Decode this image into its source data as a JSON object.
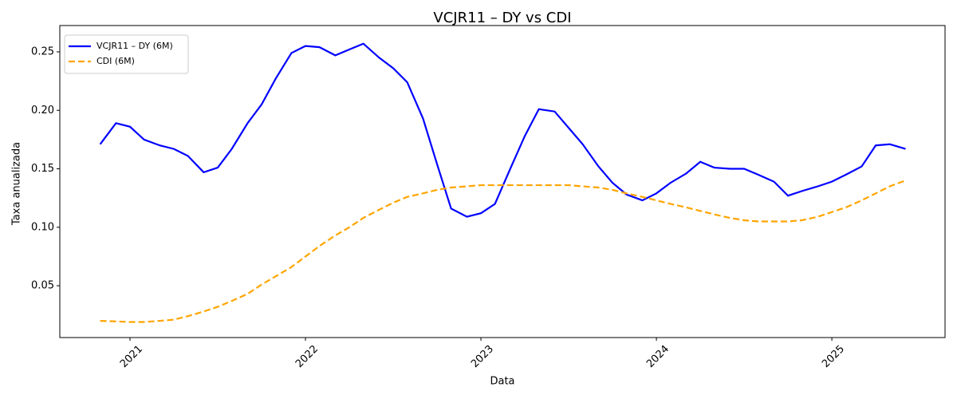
{
  "chart_data": {
    "type": "line",
    "title": "VCJR11 – DY vs CDI",
    "xlabel": "Data",
    "ylabel": "Taxa anualizada",
    "x": [
      2020.83,
      2020.92,
      2021,
      2021.08,
      2021.17,
      2021.25,
      2021.33,
      2021.42,
      2021.5,
      2021.58,
      2021.67,
      2021.75,
      2021.83,
      2021.92,
      2022,
      2022.08,
      2022.17,
      2022.25,
      2022.33,
      2022.42,
      2022.5,
      2022.58,
      2022.67,
      2022.75,
      2022.83,
      2022.92,
      2023,
      2023.08,
      2023.17,
      2023.25,
      2023.33,
      2023.42,
      2023.5,
      2023.58,
      2023.67,
      2023.75,
      2023.83,
      2023.92,
      2024,
      2024.08,
      2024.17,
      2024.25,
      2024.33,
      2024.42,
      2024.5,
      2024.58,
      2024.67,
      2024.75,
      2024.83,
      2024.92,
      2025,
      2025.08,
      2025.17,
      2025.25,
      2025.33,
      2025.42
    ],
    "series": [
      {
        "name": "VCJR11 – DY (6M)",
        "color": "#0000ff",
        "linestyle": "solid",
        "values": [
          0.171,
          0.189,
          0.186,
          0.175,
          0.17,
          0.167,
          0.161,
          0.147,
          0.151,
          0.167,
          0.189,
          0.205,
          0.227,
          0.249,
          0.255,
          0.254,
          0.247,
          0.252,
          0.257,
          0.245,
          0.236,
          0.224,
          0.193,
          0.154,
          0.116,
          0.109,
          0.112,
          0.12,
          0.151,
          0.178,
          0.201,
          0.199,
          0.185,
          0.171,
          0.152,
          0.138,
          0.128,
          0.123,
          0.129,
          0.138,
          0.146,
          0.156,
          0.151,
          0.15,
          0.15,
          0.145,
          0.139,
          0.127,
          0.131,
          0.135,
          0.139,
          0.145,
          0.152,
          0.17,
          0.171,
          0.167
        ]
      },
      {
        "name": "CDI (6M)",
        "color": "#ffa500",
        "linestyle": "dashed",
        "values": [
          0.02,
          0.0195,
          0.019,
          0.019,
          0.02,
          0.021,
          0.024,
          0.028,
          0.032,
          0.037,
          0.043,
          0.051,
          0.058,
          0.066,
          0.075,
          0.084,
          0.093,
          0.1,
          0.108,
          0.115,
          0.121,
          0.126,
          0.129,
          0.132,
          0.134,
          0.135,
          0.136,
          0.136,
          0.136,
          0.136,
          0.136,
          0.136,
          0.136,
          0.135,
          0.134,
          0.132,
          0.129,
          0.126,
          0.123,
          0.12,
          0.117,
          0.114,
          0.111,
          0.108,
          0.106,
          0.105,
          0.105,
          0.105,
          0.106,
          0.109,
          0.113,
          0.117,
          0.123,
          0.129,
          0.135,
          0.14
        ]
      }
    ],
    "xlim": [
      2020.6,
      2025.645
    ],
    "xticks": [
      2021,
      2022,
      2023,
      2024,
      2025
    ],
    "ylim": [
      0.0057,
      0.2725
    ],
    "yticks": [
      0.05,
      {
        "value": 0.1,
        "label": "0.10"
      },
      0.15,
      {
        "value": 0.2,
        "label": "0.20"
      },
      0.25
    ],
    "legend": "upper left"
  }
}
